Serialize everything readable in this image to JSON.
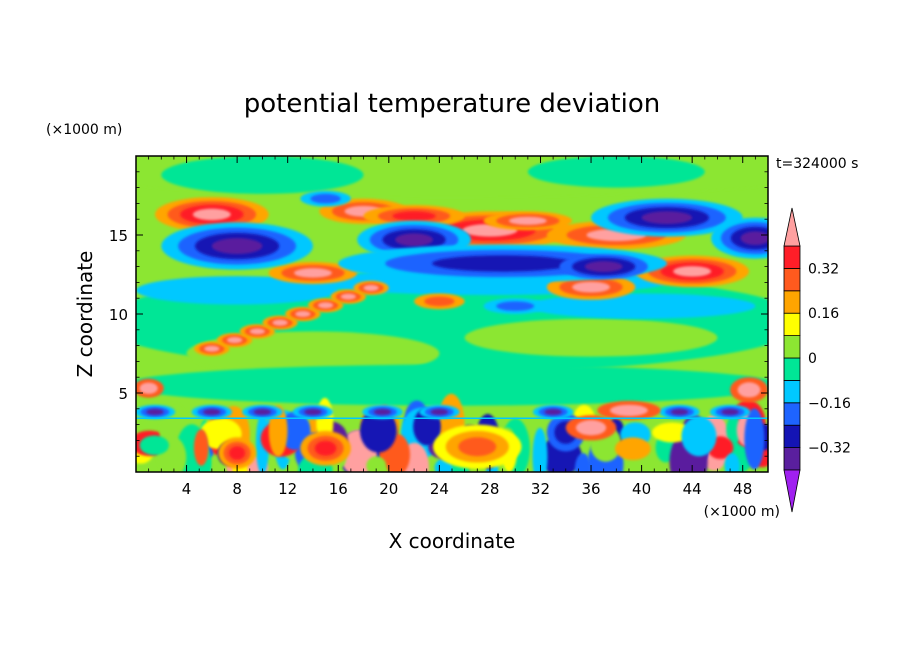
{
  "chart_data": {
    "type": "heatmap",
    "title": "potential temperature deviation",
    "xlabel": "X coordinate",
    "ylabel": "Z coordinate",
    "x_unit": "(×1000 m)",
    "y_unit": "(×1000 m)",
    "time_label": "t=324000 s",
    "xlim": [
      0,
      50
    ],
    "ylim": [
      0,
      20
    ],
    "x_ticks": [
      4,
      8,
      12,
      16,
      20,
      24,
      28,
      32,
      36,
      40,
      44,
      48
    ],
    "y_ticks": [
      5,
      10,
      15
    ],
    "colorbar": {
      "levels": [
        -0.4,
        -0.32,
        -0.24,
        -0.16,
        -0.08,
        0,
        0.08,
        0.16,
        0.24,
        0.32,
        0.4
      ],
      "colors": [
        "#a020f0",
        "#5a1f9e",
        "#1414b4",
        "#1e64ff",
        "#00c8ff",
        "#00e696",
        "#8ce632",
        "#ffff00",
        "#ffa500",
        "#ff5a1e",
        "#ff1e28",
        "#ffa0a0"
      ],
      "tick_labels": [
        "0.32",
        "0.16",
        "0",
        "−0.16",
        "−0.32"
      ],
      "tick_values": [
        0.32,
        0.16,
        0,
        -0.16,
        -0.32
      ],
      "extend": "both"
    },
    "grid": false
  }
}
